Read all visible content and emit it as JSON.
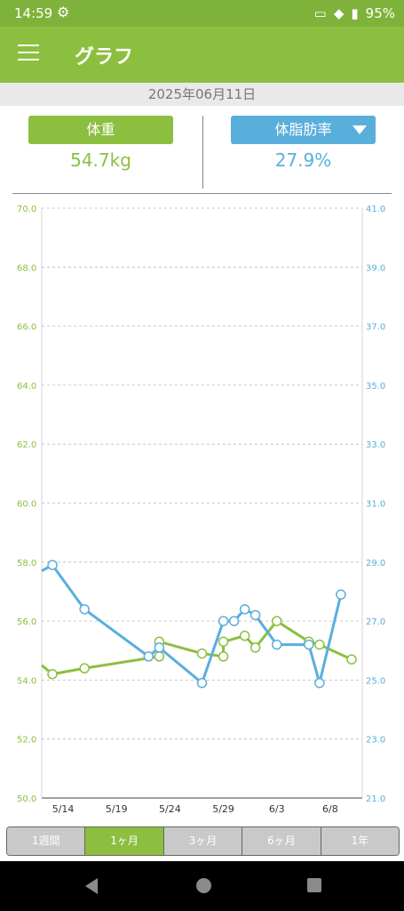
{
  "status": {
    "time": "14:59",
    "battery": "95%",
    "settings_icon": "gear-icon"
  },
  "appbar": {
    "title": "グラフ",
    "menu_icon": "hamburger-menu-icon"
  },
  "date": "2025年06月11日",
  "metrics": {
    "left": {
      "label": "体重",
      "value": "54.7kg"
    },
    "right": {
      "label": "体脂肪率",
      "value": "27.9%",
      "dropdown_icon": "triangle-down-icon"
    }
  },
  "colors": {
    "green": "#8cbf3f",
    "blue": "#5aaedc"
  },
  "tabs": [
    "1週間",
    "1ヶ月",
    "3ヶ月",
    "6ヶ月",
    "1年"
  ],
  "active_tab": "1ヶ月",
  "chart_data": {
    "type": "line",
    "x_ticks": [
      "5/14",
      "5/19",
      "5/24",
      "5/29",
      "6/3",
      "6/8"
    ],
    "y_left": {
      "ticks": [
        "70.0",
        "68.0",
        "66.0",
        "64.0",
        "62.0",
        "60.0",
        "58.0",
        "56.0",
        "54.0",
        "52.0",
        "50.0"
      ],
      "range": [
        50,
        70
      ]
    },
    "y_right": {
      "ticks": [
        "41.0",
        "39.0",
        "37.0",
        "35.0",
        "33.0",
        "31.0",
        "29.0",
        "27.0",
        "25.0",
        "23.0",
        "21.0"
      ],
      "range": [
        21,
        41
      ]
    },
    "x_range": [
      "5/12",
      "6/11"
    ],
    "series": [
      {
        "axis": "left",
        "color": "#8cbf3f",
        "points": [
          [
            "5/12",
            54.5
          ],
          [
            "5/13",
            54.2
          ],
          [
            "5/16",
            54.4
          ],
          [
            "5/23",
            54.8
          ],
          [
            "5/23",
            55.3
          ],
          [
            "5/27",
            54.9
          ],
          [
            "5/29",
            54.8
          ],
          [
            "5/29",
            55.3
          ],
          [
            "5/31",
            55.5
          ],
          [
            "6/1",
            55.1
          ],
          [
            "6/3",
            56.0
          ],
          [
            "6/6",
            55.3
          ],
          [
            "6/7",
            55.2
          ],
          [
            "6/10",
            54.7
          ]
        ]
      },
      {
        "axis": "right",
        "color": "#5aaedc",
        "points": [
          [
            "5/12",
            28.7
          ],
          [
            "5/13",
            28.9
          ],
          [
            "5/16",
            27.4
          ],
          [
            "5/22",
            25.8
          ],
          [
            "5/23",
            26.1
          ],
          [
            "5/27",
            24.9
          ],
          [
            "5/29",
            27.0
          ],
          [
            "5/30",
            27.0
          ],
          [
            "5/31",
            27.4
          ],
          [
            "6/1",
            27.2
          ],
          [
            "6/3",
            26.2
          ],
          [
            "6/6",
            26.2
          ],
          [
            "6/7",
            24.9
          ],
          [
            "6/9",
            27.9
          ]
        ]
      }
    ]
  }
}
